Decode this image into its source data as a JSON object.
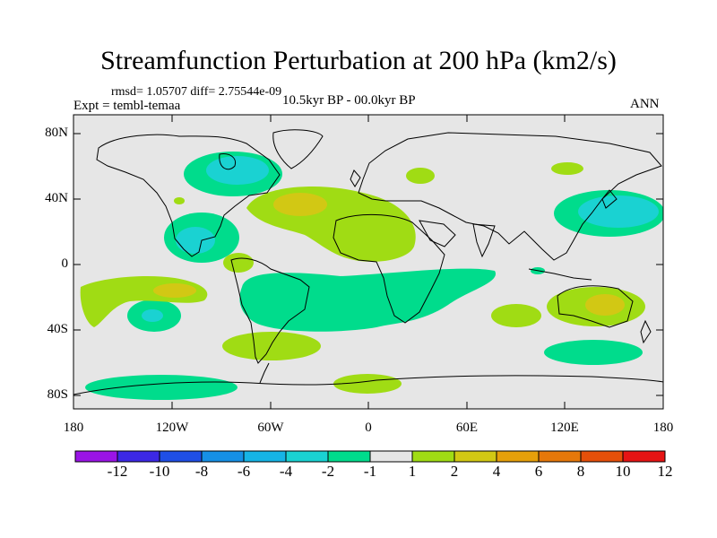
{
  "header": {
    "title": "Streamfunction Perturbation at 200 hPa (km2/s)",
    "stats": "rmsd= 1.05707 diff= 2.75544e-09",
    "experiment": "Expt = tembl-temaa",
    "period": "10.5kyr BP - 00.0kyr BP",
    "season": "ANN"
  },
  "map": {
    "projection": "cylindrical equidistant",
    "lon_range": [
      -180,
      180
    ],
    "lat_range": [
      -90,
      90
    ],
    "lat_ticks": [
      "80N",
      "40N",
      "0",
      "40S",
      "80S"
    ],
    "lon_ticks": [
      "180",
      "120W",
      "60W",
      "0",
      "60E",
      "120E",
      "180"
    ]
  },
  "colorbar": {
    "labels": [
      "-12",
      "-10",
      "-8",
      "-6",
      "-4",
      "-2",
      "-1",
      "1",
      "2",
      "4",
      "6",
      "8",
      "10",
      "12"
    ],
    "colors": [
      "#9a14e6",
      "#3c28e6",
      "#1f4fe6",
      "#1690e6",
      "#16b4e6",
      "#1ad2d2",
      "#00dc8c",
      "#e6e6e6",
      "#a0dc14",
      "#d2c814",
      "#e6a00a",
      "#e6780a",
      "#e6500a",
      "#e61414"
    ]
  },
  "colors": {
    "land_outline": "#000000",
    "background": "#e6e6e6"
  }
}
